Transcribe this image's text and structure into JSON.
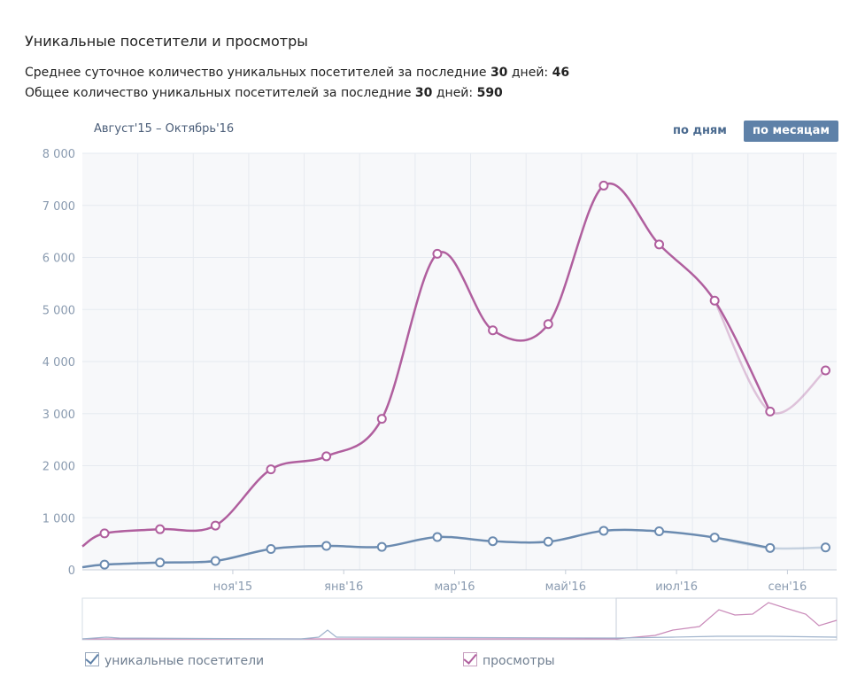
{
  "header": {
    "title": "Уникальные посетители и просмотры",
    "stat1": {
      "prefix": "Среднее суточное количество уникальных посетителей за последние ",
      "days": "30",
      "mid": " дней: ",
      "value": "46"
    },
    "stat2": {
      "prefix": "Общее количество уникальных посетителей за последние ",
      "days": "30",
      "mid": " дней: ",
      "value": "590"
    }
  },
  "controls": {
    "period": "Август'15 – Октябрь'16",
    "by_days": "по дням",
    "by_months": "по месяцам"
  },
  "colors": {
    "visitors": "#6b8bb0",
    "views": "#b05f9e",
    "grid": "#e6eaf0",
    "plot_bg": "#f7f8fa"
  },
  "chart_data": {
    "type": "line",
    "y_ticks": [
      "0",
      "1 000",
      "2 000",
      "3 000",
      "4 000",
      "5 000",
      "6 000",
      "7 000",
      "8 000"
    ],
    "ylim": [
      0,
      8000
    ],
    "x_tick_labels": [
      {
        "label": "ноя'15",
        "month": 3
      },
      {
        "label": "янв'16",
        "month": 5
      },
      {
        "label": "мар'16",
        "month": 7
      },
      {
        "label": "май'16",
        "month": 9
      },
      {
        "label": "июл'16",
        "month": 11
      },
      {
        "label": "сен'16",
        "month": 13
      }
    ],
    "series": [
      {
        "name": "уникальные посетители",
        "color": "#6b8bb0",
        "points": [
          [
            0.4,
            100
          ],
          [
            1.4,
            140
          ],
          [
            2.4,
            170
          ],
          [
            3.4,
            400
          ],
          [
            4.4,
            460
          ],
          [
            5.4,
            440
          ],
          [
            6.4,
            630
          ],
          [
            7.4,
            550
          ],
          [
            8.4,
            540
          ],
          [
            9.4,
            750
          ],
          [
            10.4,
            740
          ],
          [
            11.4,
            620
          ],
          [
            12.4,
            420
          ],
          [
            13.4,
            430
          ]
        ]
      },
      {
        "name": "просмотры",
        "color": "#b05f9e",
        "points": [
          [
            0.4,
            700
          ],
          [
            1.4,
            780
          ],
          [
            2.4,
            850
          ],
          [
            3.4,
            1930
          ],
          [
            4.4,
            2180
          ],
          [
            5.4,
            2900
          ],
          [
            6.4,
            6070
          ],
          [
            7.4,
            4600
          ],
          [
            8.4,
            4720
          ],
          [
            9.4,
            7380
          ],
          [
            10.4,
            6250
          ],
          [
            11.4,
            5170
          ],
          [
            12.4,
            3040
          ],
          [
            13.4,
            3830
          ]
        ]
      }
    ]
  },
  "legend": {
    "visitors": "уникальные посетители",
    "views": "просмотры"
  }
}
